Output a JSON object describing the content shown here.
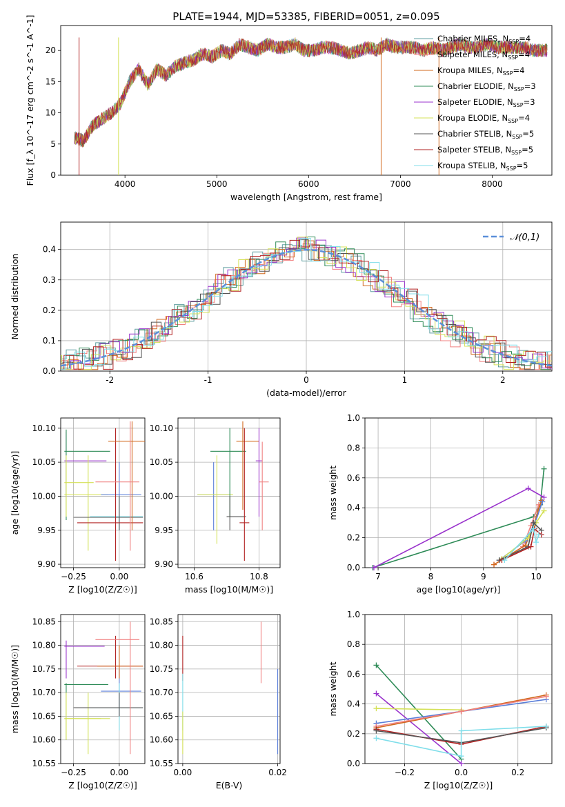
{
  "figure": {
    "title": "PLATE=1944, MJD=53385, FIBERID=0051, z=0.095"
  },
  "series_styles": [
    {
      "name": "Chabrier MILES",
      "n_ssp": "4",
      "color": "#5f9ea0"
    },
    {
      "name": "Salpeter MILES",
      "n_ssp": "4",
      "color": "#f08080"
    },
    {
      "name": "Kroupa MILES",
      "n_ssp": "4",
      "color": "#d2691e"
    },
    {
      "name": "Chabrier ELODIE",
      "n_ssp": "3",
      "color": "#2e8b57"
    },
    {
      "name": "Salpeter ELODIE",
      "n_ssp": "3",
      "color": "#9932cc"
    },
    {
      "name": "Kroupa ELODIE",
      "n_ssp": "4",
      "color": "#d4e157"
    },
    {
      "name": "Chabrier STELIB",
      "n_ssp": "5",
      "color": "#555555"
    },
    {
      "name": "Salpeter STELIB",
      "n_ssp": "5",
      "color": "#b22222"
    },
    {
      "name": "Kroupa STELIB",
      "n_ssp": "5",
      "color": "#80deea"
    }
  ],
  "chart_data": [
    {
      "id": "spectrum",
      "type": "line",
      "title": "PLATE=1944, MJD=53385, FIBERID=0051, z=0.095",
      "xlabel": "wavelength [Angstrom, rest frame]",
      "ylabel": "Flux [f_λ 10^-17 erg cm^-2 s^-1 A^-1]",
      "xlim": [
        3300,
        8650
      ],
      "ylim": [
        0,
        24
      ],
      "xticks": [
        4000,
        5000,
        6000,
        7000,
        8000
      ],
      "yticks": [
        0,
        5,
        10,
        15,
        20
      ],
      "grid": false,
      "legend": "right",
      "spectrum_x": [
        3450,
        3550,
        3650,
        3750,
        3850,
        3950,
        4050,
        4150,
        4250,
        4350,
        4450,
        4550,
        4650,
        4750,
        4850,
        4950,
        5050,
        5150,
        5250,
        5350,
        5450,
        5550,
        5650,
        5750,
        5850,
        5950,
        6050,
        6150,
        6250,
        6350,
        6450,
        6550,
        6650,
        6750,
        6850,
        6950,
        7050,
        7150,
        7250,
        7350,
        7450,
        7550,
        7650,
        7750,
        7850,
        7950,
        8050,
        8150,
        8250,
        8350,
        8450,
        8550
      ],
      "spectrum_y": [
        6,
        5.5,
        8,
        9,
        10,
        11.5,
        15,
        17,
        14.5,
        17,
        16,
        17.5,
        18,
        18.5,
        19.5,
        19,
        20,
        19.5,
        21,
        20.5,
        20,
        21,
        20.5,
        20.5,
        21,
        20,
        20,
        20.5,
        20.5,
        20,
        19.5,
        20,
        20.5,
        20,
        21,
        20.5,
        20.5,
        20.5,
        20,
        20.5,
        20,
        20.5,
        21,
        20.5,
        20.5,
        21,
        20.5,
        20.5,
        20.5,
        20.5,
        20,
        20
      ],
      "dropouts": [
        {
          "x": 3500,
          "series": "Salpeter STELIB"
        },
        {
          "x": 3930,
          "series": "Kroupa ELODIE"
        },
        {
          "x": 6790,
          "series": "Kroupa MILES"
        },
        {
          "x": 7420,
          "series": "Kroupa MILES"
        }
      ]
    },
    {
      "id": "residuals",
      "type": "step",
      "xlabel": "(data-model)/error",
      "ylabel": "Normed distribution",
      "xlim": [
        -2.5,
        2.5
      ],
      "ylim": [
        0,
        0.49
      ],
      "xticks": [
        -2,
        -1,
        0,
        1,
        2
      ],
      "yticks": [
        0.0,
        0.1,
        0.2,
        0.3,
        0.4
      ],
      "grid": true,
      "legend": "top-right",
      "reference_label": "𝒩(0,1)",
      "reference_color": "#5b8fd9"
    },
    {
      "id": "age_vs_Z",
      "type": "errorbar",
      "xlabel": "Z [log10(Z/Z☉)]",
      "ylabel": "age [log10(age/yr)]",
      "xlim": [
        -0.32,
        0.14
      ],
      "ylim": [
        9.895,
        10.115
      ],
      "xticks": [
        -0.25,
        0.0
      ],
      "xticklabels": [
        "−0.25",
        "0.00"
      ],
      "yticks": [
        9.9,
        9.95,
        10.0,
        10.05,
        10.1
      ],
      "yticklabels": [
        "9.90",
        "9.95",
        "10.00",
        "10.05",
        "10.10"
      ],
      "grid": true,
      "points": [
        {
          "x": -0.29,
          "xlo": -0.3,
          "xhi": -0.07,
          "y": 10.052,
          "ylo": 10.0,
          "yhi": 10.095,
          "color": "#9932cc"
        },
        {
          "x": -0.29,
          "xlo": -0.3,
          "xhi": -0.05,
          "y": 10.066,
          "ylo": 9.965,
          "yhi": 10.098,
          "color": "#2e8b57"
        },
        {
          "x": -0.29,
          "xlo": -0.3,
          "xhi": -0.14,
          "y": 10.02,
          "ylo": 9.97,
          "yhi": 10.06,
          "color": "#d4e157"
        },
        {
          "x": -0.17,
          "xlo": -0.3,
          "xhi": -0.06,
          "y": 10.002,
          "ylo": 9.92,
          "yhi": 10.06,
          "color": "#d4e157"
        },
        {
          "x": 0.0,
          "xlo": -0.1,
          "xhi": 0.12,
          "y": 10.002,
          "ylo": 9.95,
          "yhi": 10.05,
          "color": "#5b7fd9"
        },
        {
          "x": 0.0,
          "xlo": -0.16,
          "xhi": 0.13,
          "y": 9.97,
          "ylo": 9.95,
          "yhi": 10.0,
          "color": "#80deea"
        },
        {
          "x": 0.0,
          "xlo": -0.25,
          "xhi": 0.13,
          "y": 9.969,
          "ylo": 9.95,
          "yhi": 10.0,
          "color": "#555555"
        },
        {
          "x": -0.02,
          "xlo": -0.23,
          "xhi": 0.13,
          "y": 9.961,
          "ylo": 9.905,
          "yhi": 10.1,
          "color": "#b22222"
        },
        {
          "x": 0.07,
          "xlo": -0.06,
          "xhi": 0.14,
          "y": 10.081,
          "ylo": 9.95,
          "yhi": 10.11,
          "color": "#d2691e"
        },
        {
          "x": 0.06,
          "xlo": -0.13,
          "xhi": 0.11,
          "y": 10.021,
          "ylo": 9.92,
          "yhi": 10.11,
          "color": "#f08080"
        }
      ]
    },
    {
      "id": "age_vs_mass",
      "type": "errorbar",
      "xlabel": "mass [log10(M/M☉)]",
      "ylabel": "",
      "xlim": [
        10.55,
        10.865
      ],
      "ylim": [
        9.895,
        10.115
      ],
      "xticks": [
        10.6,
        10.8
      ],
      "xticklabels": [
        "10.6",
        "10.8"
      ],
      "yticks": [
        9.9,
        9.95,
        10.0,
        10.05,
        10.1
      ],
      "yticklabels": [
        "9.90",
        "9.95",
        "10.00",
        "10.05",
        "10.10"
      ],
      "grid": true,
      "points": [
        {
          "x": 10.66,
          "xlo": 10.61,
          "xhi": 10.71,
          "y": 10.002,
          "ylo": 9.95,
          "yhi": 10.05,
          "color": "#5b7fd9"
        },
        {
          "x": 10.67,
          "xlo": 10.61,
          "xhi": 10.72,
          "y": 10.002,
          "ylo": 9.93,
          "yhi": 10.06,
          "color": "#d4e157"
        },
        {
          "x": 10.71,
          "xlo": 10.65,
          "xhi": 10.76,
          "y": 10.066,
          "ylo": 9.97,
          "yhi": 10.1,
          "color": "#2e8b57"
        },
        {
          "x": 10.71,
          "xlo": 10.7,
          "xhi": 10.76,
          "y": 9.97,
          "ylo": 9.95,
          "yhi": 10.0,
          "color": "#555555"
        },
        {
          "x": 10.75,
          "xlo": 10.73,
          "xhi": 10.8,
          "y": 10.081,
          "ylo": 9.98,
          "yhi": 10.11,
          "color": "#d2691e"
        },
        {
          "x": 10.755,
          "xlo": 10.74,
          "xhi": 10.77,
          "y": 9.961,
          "ylo": 9.905,
          "yhi": 10.1,
          "color": "#b22222"
        },
        {
          "x": 10.8,
          "xlo": 10.79,
          "xhi": 10.81,
          "y": 10.052,
          "ylo": 9.97,
          "yhi": 10.1,
          "color": "#9932cc"
        },
        {
          "x": 10.81,
          "xlo": 10.8,
          "xhi": 10.83,
          "y": 10.021,
          "ylo": 9.95,
          "yhi": 10.08,
          "color": "#f08080"
        }
      ]
    },
    {
      "id": "weight_vs_age",
      "type": "line",
      "xlabel": "age [log10(age/yr)]",
      "ylabel": "mass weight",
      "xlim": [
        6.75,
        10.3
      ],
      "ylim": [
        0,
        1
      ],
      "xticks": [
        7,
        8,
        9,
        10
      ],
      "yticks": [
        0.0,
        0.2,
        0.4,
        0.6,
        0.8,
        1.0
      ],
      "yticklabels": [
        "0.0",
        "0.2",
        "0.4",
        "0.6",
        "0.8",
        "1.0"
      ],
      "grid": true,
      "lines": [
        {
          "color": "#2e8b57",
          "x": [
            6.9,
            9.95,
            10.08,
            10.15
          ],
          "y": [
            0.0,
            0.34,
            0.42,
            0.66
          ]
        },
        {
          "color": "#9932cc",
          "x": [
            6.92,
            9.85,
            10.15
          ],
          "y": [
            0.0,
            0.53,
            0.47
          ]
        },
        {
          "color": "#f08080",
          "x": [
            9.2,
            9.75,
            9.9,
            10.05
          ],
          "y": [
            0.02,
            0.14,
            0.28,
            0.42
          ]
        },
        {
          "color": "#d2691e",
          "x": [
            9.2,
            9.8,
            9.95,
            10.1
          ],
          "y": [
            0.02,
            0.15,
            0.28,
            0.45
          ]
        },
        {
          "color": "#5b7fd9",
          "x": [
            9.3,
            9.8,
            9.98,
            10.12
          ],
          "y": [
            0.05,
            0.18,
            0.3,
            0.44
          ]
        },
        {
          "color": "#d4e157",
          "x": [
            9.35,
            9.85,
            10.0,
            10.15
          ],
          "y": [
            0.06,
            0.2,
            0.3,
            0.38
          ]
        },
        {
          "color": "#555555",
          "x": [
            9.3,
            9.85,
            9.95,
            10.1
          ],
          "y": [
            0.05,
            0.14,
            0.3,
            0.25
          ]
        },
        {
          "color": "#b22222",
          "x": [
            9.35,
            9.9,
            9.97,
            10.1
          ],
          "y": [
            0.05,
            0.14,
            0.26,
            0.22
          ]
        },
        {
          "color": "#80deea",
          "x": [
            9.4,
            9.95,
            10.0,
            10.05
          ],
          "y": [
            0.05,
            0.26,
            0.17,
            0.22
          ]
        }
      ]
    },
    {
      "id": "mass_vs_Z",
      "type": "errorbar",
      "xlabel": "Z [log10(Z/Z☉)]",
      "ylabel": "mass [log10(M/M☉)]",
      "xlim": [
        -0.32,
        0.14
      ],
      "ylim": [
        10.55,
        10.865
      ],
      "xticks": [
        -0.25,
        0.0
      ],
      "xticklabels": [
        "−0.25",
        "0.00"
      ],
      "yticks": [
        10.55,
        10.6,
        10.65,
        10.7,
        10.75,
        10.8,
        10.85
      ],
      "yticklabels": [
        "10.55",
        "10.60",
        "10.65",
        "10.70",
        "10.75",
        "10.80",
        "10.85"
      ],
      "grid": true,
      "points": [
        {
          "x": -0.29,
          "xlo": -0.3,
          "xhi": -0.08,
          "y": 10.798,
          "ylo": 10.73,
          "yhi": 10.81,
          "color": "#9932cc"
        },
        {
          "x": -0.29,
          "xlo": -0.3,
          "xhi": -0.06,
          "y": 10.717,
          "ylo": 10.6,
          "yhi": 10.72,
          "color": "#2e8b57"
        },
        {
          "x": -0.29,
          "xlo": -0.3,
          "xhi": -0.05,
          "y": 10.645,
          "ylo": 10.6,
          "yhi": 10.7,
          "color": "#d4e157"
        },
        {
          "x": -0.17,
          "xlo": -0.3,
          "xhi": -0.1,
          "y": 10.645,
          "ylo": 10.57,
          "yhi": 10.7,
          "color": "#d4e157"
        },
        {
          "x": 0.0,
          "xlo": -0.1,
          "xhi": 0.12,
          "y": 10.703,
          "ylo": 10.65,
          "yhi": 10.75,
          "color": "#5b7fd9"
        },
        {
          "x": 0.0,
          "xlo": -0.16,
          "xhi": 0.13,
          "y": 10.668,
          "ylo": 10.62,
          "yhi": 10.72,
          "color": "#80deea"
        },
        {
          "x": 0.0,
          "xlo": -0.25,
          "xhi": 0.13,
          "y": 10.668,
          "ylo": 10.65,
          "yhi": 10.7,
          "color": "#555555"
        },
        {
          "x": -0.02,
          "xlo": -0.23,
          "xhi": 0.13,
          "y": 10.756,
          "ylo": 10.73,
          "yhi": 10.82,
          "color": "#b22222"
        },
        {
          "x": 0.0,
          "xlo": -0.12,
          "xhi": 0.13,
          "y": 10.756,
          "ylo": 10.73,
          "yhi": 10.8,
          "color": "#d2691e"
        },
        {
          "x": 0.06,
          "xlo": -0.13,
          "xhi": 0.11,
          "y": 10.812,
          "ylo": 10.57,
          "yhi": 10.85,
          "color": "#f08080"
        }
      ]
    },
    {
      "id": "mass_vs_ebv",
      "type": "errorbar",
      "xlabel": "E(B-V)",
      "ylabel": "",
      "xlim": [
        -0.001,
        0.0205
      ],
      "ylim": [
        10.55,
        10.865
      ],
      "xticks": [
        0.0,
        0.02
      ],
      "xticklabels": [
        "0.00",
        "0.02"
      ],
      "yticks": [
        10.55,
        10.6,
        10.65,
        10.7,
        10.75,
        10.8,
        10.85
      ],
      "yticklabels": [
        "10.55",
        "10.60",
        "10.65",
        "10.70",
        "10.75",
        "10.80",
        "10.85"
      ],
      "grid": true,
      "points": [
        {
          "x": 0.0,
          "xlo": 0.0,
          "xhi": 0.0,
          "y": 10.77,
          "ylo": 10.725,
          "yhi": 10.82,
          "color": "#b22222"
        },
        {
          "x": 0.0,
          "xlo": 0.0,
          "xhi": 0.0,
          "y": 10.7,
          "ylo": 10.62,
          "yhi": 10.74,
          "color": "#80deea"
        },
        {
          "x": 0.0,
          "xlo": 0.0,
          "xhi": 0.0,
          "y": 10.62,
          "ylo": 10.57,
          "yhi": 10.66,
          "color": "#d4e157"
        },
        {
          "x": 0.0165,
          "xlo": 0.0165,
          "xhi": 0.0165,
          "y": 10.78,
          "ylo": 10.72,
          "yhi": 10.85,
          "color": "#f08080"
        },
        {
          "x": 0.02,
          "xlo": 0.02,
          "xhi": 0.02,
          "y": 10.65,
          "ylo": 10.57,
          "yhi": 10.75,
          "color": "#5b7fd9"
        }
      ]
    },
    {
      "id": "weight_vs_Z",
      "type": "line",
      "xlabel": "Z [log10(Z/Z☉)]",
      "ylabel": "mass weight",
      "xlim": [
        -0.34,
        0.32
      ],
      "ylim": [
        0,
        1
      ],
      "xticks": [
        -0.2,
        0.0,
        0.2
      ],
      "xticklabels": [
        "−0.2",
        "0.0",
        "0.2"
      ],
      "yticks": [
        0.0,
        0.2,
        0.4,
        0.6,
        0.8,
        1.0
      ],
      "yticklabels": [
        "0.0",
        "0.2",
        "0.4",
        "0.6",
        "0.8",
        "1.0"
      ],
      "grid": true,
      "lines": [
        {
          "color": "#2e8b57",
          "x": [
            -0.3,
            0.0
          ],
          "y": [
            0.66,
            0.03
          ]
        },
        {
          "color": "#9932cc",
          "x": [
            -0.3,
            0.0
          ],
          "y": [
            0.47,
            0.0
          ]
        },
        {
          "color": "#d4e157",
          "x": [
            -0.3,
            0.0
          ],
          "y": [
            0.37,
            0.36
          ]
        },
        {
          "color": "#5b7fd9",
          "x": [
            -0.3,
            0.0,
            0.3
          ],
          "y": [
            0.27,
            0.35,
            0.43
          ]
        },
        {
          "color": "#d2691e",
          "x": [
            -0.3,
            0.0,
            0.3
          ],
          "y": [
            0.24,
            0.35,
            0.46
          ]
        },
        {
          "color": "#f08080",
          "x": [
            -0.3,
            0.0,
            0.3
          ],
          "y": [
            0.25,
            0.35,
            0.45
          ]
        },
        {
          "color": "#b22222",
          "x": [
            -0.3,
            0.0,
            0.3
          ],
          "y": [
            0.23,
            0.13,
            0.25
          ]
        },
        {
          "color": "#555555",
          "x": [
            -0.3,
            0.0,
            0.3
          ],
          "y": [
            0.22,
            0.14,
            0.24
          ]
        },
        {
          "color": "#80deea",
          "x": [
            -0.3,
            0.0,
            0.0,
            0.3
          ],
          "y": [
            0.17,
            0.05,
            0.22,
            0.25
          ]
        }
      ]
    }
  ]
}
